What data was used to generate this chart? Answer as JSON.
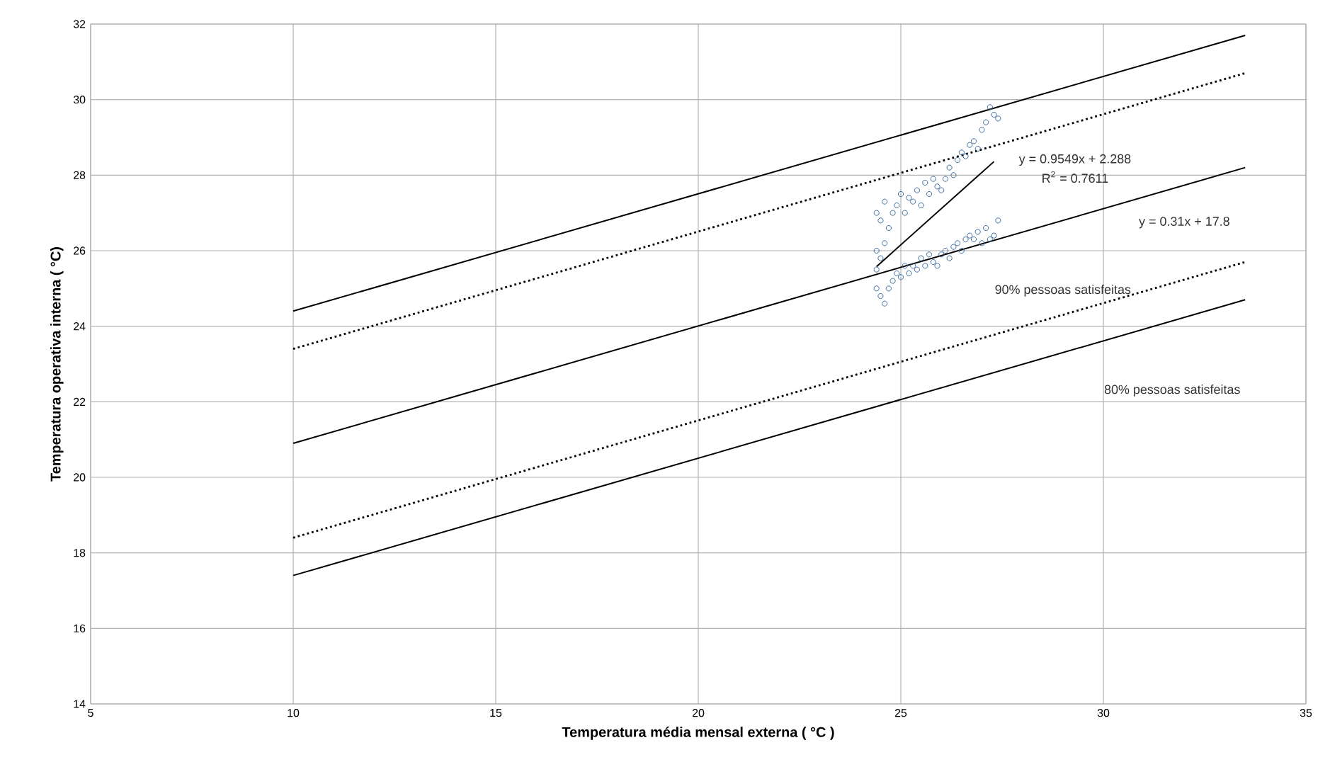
{
  "chart_data": {
    "type": "scatter",
    "xlabel": "Temperatura média  mensal externa ( °C )",
    "ylabel": "Temperatura operativa interna ( °C)",
    "xlim": [
      5,
      35
    ],
    "ylim": [
      14,
      32
    ],
    "xticks": [
      5,
      10,
      15,
      20,
      25,
      30,
      35
    ],
    "yticks": [
      14,
      16,
      18,
      20,
      22,
      24,
      26,
      28,
      30,
      32
    ],
    "grid": true,
    "marker": "circle",
    "series": [
      {
        "color": "#3b6aa0",
        "x": [
          24.4,
          24.4,
          24.4,
          24.4,
          24.5,
          24.5,
          24.5,
          24.6,
          24.6,
          24.6,
          24.7,
          24.7,
          24.8,
          24.8,
          24.9,
          24.9,
          25.0,
          25.0,
          25.1,
          25.1,
          25.2,
          25.2,
          25.3,
          25.3,
          25.4,
          25.4,
          25.5,
          25.5,
          25.6,
          25.6,
          25.7,
          25.7,
          25.8,
          25.8,
          25.9,
          25.9,
          26.0,
          26.0,
          26.1,
          26.1,
          26.2,
          26.2,
          26.3,
          26.3,
          26.4,
          26.4,
          26.5,
          26.5,
          26.6,
          26.6,
          26.7,
          26.7,
          26.8,
          26.8,
          26.9,
          26.9,
          27.0,
          27.0,
          27.1,
          27.1,
          27.2,
          27.2,
          27.3,
          27.3,
          27.4,
          27.4
        ],
        "values": [
          25.0,
          27.0,
          26.0,
          25.5,
          24.8,
          26.8,
          25.8,
          24.6,
          27.3,
          26.2,
          25.0,
          26.6,
          25.2,
          27.0,
          25.4,
          27.2,
          25.3,
          27.5,
          25.6,
          27.0,
          25.4,
          27.4,
          25.6,
          27.3,
          25.5,
          27.6,
          25.8,
          27.2,
          25.6,
          27.8,
          25.9,
          27.5,
          25.7,
          27.9,
          25.6,
          27.7,
          25.9,
          27.6,
          26.0,
          27.9,
          25.8,
          28.2,
          26.1,
          28.0,
          26.2,
          28.4,
          26.0,
          28.6,
          26.3,
          28.5,
          26.4,
          28.8,
          26.3,
          28.9,
          26.5,
          28.7,
          26.2,
          29.2,
          26.6,
          29.4,
          26.3,
          29.8,
          26.4,
          29.6,
          26.8,
          29.5
        ]
      },
      {
        "type": "line",
        "color": "#000000",
        "line_style": "solid",
        "marker": "none",
        "x": [
          24.4,
          27.3
        ],
        "values": [
          25.58,
          28.36
        ]
      },
      {
        "type": "line",
        "color": "#000000",
        "line_style": "solid",
        "marker": "none",
        "x": [
          10,
          33.5
        ],
        "values": [
          24.4,
          31.7
        ]
      },
      {
        "type": "line",
        "color": "#000000",
        "line_style": "dotted",
        "marker": "none",
        "x": [
          10,
          33.5
        ],
        "values": [
          23.4,
          30.7
        ]
      },
      {
        "type": "line",
        "color": "#000000",
        "line_style": "solid",
        "marker": "none",
        "x": [
          10,
          33.5
        ],
        "values": [
          20.9,
          28.2
        ]
      },
      {
        "type": "line",
        "color": "#000000",
        "line_style": "dotted",
        "marker": "none",
        "x": [
          10,
          33.5
        ],
        "values": [
          18.4,
          25.7
        ]
      },
      {
        "type": "line",
        "color": "#000000",
        "line_style": "solid",
        "marker": "none",
        "x": [
          10,
          33.5
        ],
        "values": [
          17.4,
          24.7
        ]
      }
    ],
    "annotations": [
      "y = 0.9549x + 2.288",
      "R$^{2}$ = 0.7611",
      "y = 0.31x + 17.8",
      "90%  pessoas satisfeitas",
      "80% pessoas satisfeitas"
    ]
  }
}
